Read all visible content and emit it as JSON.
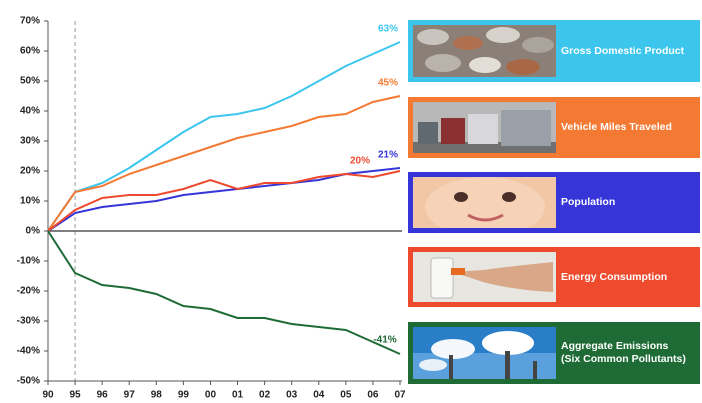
{
  "chart_data": {
    "type": "line",
    "categories": [
      "90",
      "95",
      "96",
      "97",
      "98",
      "99",
      "00",
      "01",
      "02",
      "03",
      "04",
      "05",
      "06",
      "07"
    ],
    "ylim": [
      -50,
      70
    ],
    "yticks": [
      {
        "value": -50,
        "label": "-50%"
      },
      {
        "value": -40,
        "label": "-40%"
      },
      {
        "value": -30,
        "label": "-30%"
      },
      {
        "value": -20,
        "label": "-20%"
      },
      {
        "value": -10,
        "label": "-10%"
      },
      {
        "value": 0,
        "label": "0%"
      },
      {
        "value": 10,
        "label": "10%"
      },
      {
        "value": 20,
        "label": "20%"
      },
      {
        "value": 30,
        "label": "30%"
      },
      {
        "value": 40,
        "label": "40%"
      },
      {
        "value": 50,
        "label": "50%"
      },
      {
        "value": 60,
        "label": "60%"
      },
      {
        "value": 70,
        "label": "70%"
      }
    ],
    "reference_line_category": "95",
    "series": [
      {
        "name": "Gross Domestic Product",
        "color": "#3cc6ee",
        "values": [
          0,
          13,
          16,
          21,
          27,
          33,
          38,
          39,
          41,
          45,
          50,
          55,
          59,
          63
        ],
        "value_labels": [
          null,
          null,
          null,
          null,
          null,
          null,
          null,
          null,
          null,
          null,
          null,
          null,
          null,
          "63%"
        ]
      },
      {
        "name": "Vehicle Miles Traveled",
        "color": "#f47a34",
        "values": [
          0,
          13,
          15,
          19,
          22,
          25,
          28,
          31,
          33,
          35,
          38,
          39,
          43,
          45
        ],
        "value_labels": [
          null,
          null,
          null,
          null,
          null,
          null,
          null,
          null,
          null,
          null,
          null,
          null,
          null,
          "45%"
        ]
      },
      {
        "name": "Population",
        "color": "#3535d8",
        "values": [
          0,
          6,
          8,
          9,
          10,
          12,
          13,
          14,
          15,
          16,
          17,
          19,
          20,
          21
        ],
        "value_labels": [
          null,
          null,
          null,
          null,
          null,
          null,
          null,
          null,
          null,
          null,
          null,
          null,
          null,
          "21%"
        ]
      },
      {
        "name": "Energy Consumption",
        "color": "#ee4a2e",
        "values": [
          0,
          7,
          11,
          12,
          12,
          14,
          17,
          14,
          16,
          16,
          18,
          19,
          18,
          20
        ],
        "value_labels": [
          null,
          null,
          null,
          null,
          null,
          null,
          null,
          null,
          null,
          null,
          null,
          null,
          null,
          "20%"
        ]
      },
      {
        "name": "Aggregate Emissions\n(Six Common Pollutants)",
        "color": "#1f6b36",
        "values": [
          0,
          -14,
          -18,
          -19,
          -21,
          -25,
          -26,
          -29,
          -29,
          -31,
          -32,
          -33,
          -37,
          -41
        ],
        "value_labels": [
          null,
          null,
          null,
          null,
          null,
          null,
          null,
          null,
          null,
          null,
          null,
          null,
          null,
          "-41%"
        ]
      }
    ]
  }
}
